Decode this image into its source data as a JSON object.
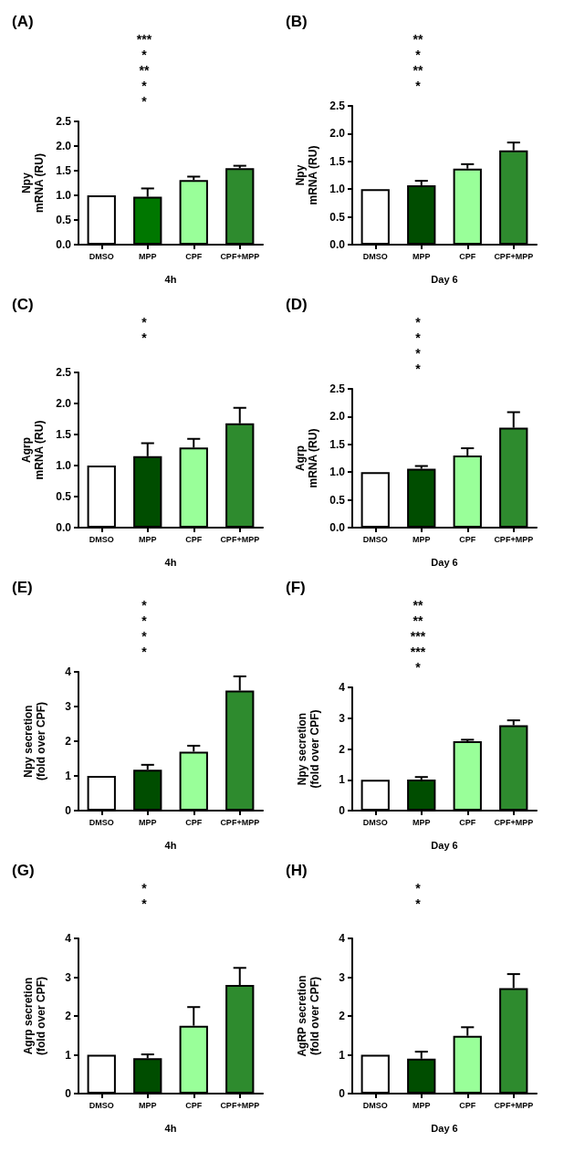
{
  "chart_data": [
    {
      "type": "bar",
      "title": "(A)",
      "ylabel": "Npy\nmRNA (RU)",
      "xlabel": "4h",
      "categories": [
        "DMSO",
        "MPP",
        "CPF",
        "CPF+MPP"
      ],
      "values": [
        1.0,
        0.97,
        1.31,
        1.55
      ],
      "errors": [
        null,
        [
          0.97,
          1.14
        ],
        [
          1.31,
          1.38
        ],
        [
          1.55,
          1.6
        ]
      ],
      "colors": [
        "#ffffff",
        "#007700",
        "#99ff99",
        "#2e8b2e"
      ],
      "ylim": [
        0,
        2.5
      ],
      "yticks": [
        {
          "value": 0,
          "label": "0.0"
        },
        {
          "value": 0.5,
          "label": "0.5"
        },
        {
          "value": 1,
          "label": "1.0"
        },
        {
          "value": 1.5,
          "label": "1.5"
        },
        {
          "value": 2,
          "label": "2.0"
        },
        {
          "value": 2.5,
          "label": "2.5"
        }
      ],
      "annotations": [
        "***",
        "*",
        "**",
        "*",
        "*"
      ]
    },
    {
      "type": "bar",
      "title": "(B)",
      "ylabel": "Npy\nmRNA (RU)",
      "xlabel": "Day 6",
      "categories": [
        "DMSO",
        "MPP",
        "CPF",
        "CPF+MPP"
      ],
      "values": [
        1.0,
        1.07,
        1.37,
        1.7
      ],
      "errors": [
        null,
        [
          1.07,
          1.15
        ],
        [
          1.37,
          1.45
        ],
        [
          1.7,
          1.84
        ]
      ],
      "colors": [
        "#ffffff",
        "#004d00",
        "#99ff99",
        "#2e8b2e"
      ],
      "ylim": [
        0,
        2.5
      ],
      "yticks": [
        {
          "value": 0,
          "label": "0.0"
        },
        {
          "value": 0.5,
          "label": "0.5"
        },
        {
          "value": 1,
          "label": "1.0"
        },
        {
          "value": 1.5,
          "label": "1.5"
        },
        {
          "value": 2,
          "label": "2.0"
        },
        {
          "value": 2.5,
          "label": "2.5"
        }
      ],
      "annotations": [
        "**",
        "*",
        "**",
        "*"
      ]
    },
    {
      "type": "bar",
      "title": "(C)",
      "ylabel": "Agrp\nmRNA (RU)",
      "xlabel": "4h",
      "categories": [
        "DMSO",
        "MPP",
        "CPF",
        "CPF+MPP"
      ],
      "values": [
        1.0,
        1.15,
        1.29,
        1.68
      ],
      "errors": [
        null,
        [
          1.15,
          1.36
        ],
        [
          1.29,
          1.43
        ],
        [
          1.68,
          1.93
        ]
      ],
      "colors": [
        "#ffffff",
        "#004d00",
        "#99ff99",
        "#2e8b2e"
      ],
      "ylim": [
        0,
        2.5
      ],
      "yticks": [
        {
          "value": 0,
          "label": "0.0"
        },
        {
          "value": 0.5,
          "label": "0.5"
        },
        {
          "value": 1,
          "label": "1.0"
        },
        {
          "value": 1.5,
          "label": "1.5"
        },
        {
          "value": 2,
          "label": "2.0"
        },
        {
          "value": 2.5,
          "label": "2.5"
        }
      ],
      "annotations": [
        "*",
        "*"
      ]
    },
    {
      "type": "bar",
      "title": "(D)",
      "ylabel": "Agrp\nmRNA (RU)",
      "xlabel": "Day 6",
      "categories": [
        "DMSO",
        "MPP",
        "CPF",
        "CPF+MPP"
      ],
      "values": [
        1.0,
        1.06,
        1.3,
        1.8
      ],
      "errors": [
        null,
        [
          1.06,
          1.11
        ],
        [
          1.3,
          1.43
        ],
        [
          1.8,
          2.08
        ]
      ],
      "colors": [
        "#ffffff",
        "#004d00",
        "#99ff99",
        "#2e8b2e"
      ],
      "ylim": [
        0,
        2.5
      ],
      "yticks": [
        {
          "value": 0,
          "label": "0.0"
        },
        {
          "value": 0.5,
          "label": "0.5"
        },
        {
          "value": 1,
          "label": "1.0"
        },
        {
          "value": 1.5,
          "label": "1.5"
        },
        {
          "value": 2,
          "label": "2.0"
        },
        {
          "value": 2.5,
          "label": "2.5"
        }
      ],
      "annotations": [
        "*",
        "*",
        "*",
        "*"
      ]
    },
    {
      "type": "bar",
      "title": "(E)",
      "ylabel": "Npy secretion\n(fold over CPF)",
      "xlabel": "4h",
      "categories": [
        "DMSO",
        "MPP",
        "CPF",
        "CPF+MPP"
      ],
      "values": [
        1.0,
        1.18,
        1.7,
        3.46
      ],
      "errors": [
        null,
        [
          1.18,
          1.32
        ],
        [
          1.7,
          1.87
        ],
        [
          3.46,
          3.87
        ]
      ],
      "colors": [
        "#ffffff",
        "#004d00",
        "#99ff99",
        "#2e8b2e"
      ],
      "ylim": [
        0,
        4
      ],
      "yticks": [
        0,
        1,
        2,
        3,
        4
      ],
      "annotations": [
        "*",
        "*",
        "*",
        "*"
      ]
    },
    {
      "type": "bar",
      "title": "(F)",
      "ylabel": "Npy secretion\n(fold over CPF)",
      "xlabel": "Day 6",
      "categories": [
        "DMSO",
        "MPP",
        "CPF",
        "CPF+MPP"
      ],
      "values": [
        1.0,
        1.01,
        2.25,
        2.77
      ],
      "errors": [
        null,
        [
          1.01,
          1.09
        ],
        [
          2.25,
          2.3
        ],
        [
          2.77,
          2.93
        ]
      ],
      "colors": [
        "#ffffff",
        "#004d00",
        "#99ff99",
        "#2e8b2e"
      ],
      "ylim": [
        0,
        4
      ],
      "yticks": [
        0,
        1,
        2,
        3,
        4
      ],
      "annotations": [
        "**",
        "**",
        "***",
        "***",
        "*"
      ]
    },
    {
      "type": "bar",
      "title": "(G)",
      "ylabel": "Agrp secretion\n(fold over CPF)",
      "xlabel": "4h",
      "categories": [
        "DMSO",
        "MPP",
        "CPF",
        "CPF+MPP"
      ],
      "values": [
        1.0,
        0.91,
        1.75,
        2.8
      ],
      "errors": [
        null,
        [
          0.91,
          1.01
        ],
        [
          1.75,
          2.23
        ],
        [
          2.8,
          3.24
        ]
      ],
      "colors": [
        "#ffffff",
        "#004d00",
        "#99ff99",
        "#2e8b2e"
      ],
      "ylim": [
        0,
        4
      ],
      "yticks": [
        0,
        1,
        2,
        3,
        4
      ],
      "annotations": [
        "*",
        "*"
      ]
    },
    {
      "type": "bar",
      "title": "(H)",
      "ylabel": "AgRP secretion\n(fold over CPF)",
      "xlabel": "Day 6",
      "categories": [
        "DMSO",
        "MPP",
        "CPF",
        "CPF+MPP"
      ],
      "values": [
        1.0,
        0.9,
        1.49,
        2.72
      ],
      "errors": [
        null,
        [
          0.9,
          1.08
        ],
        [
          1.49,
          1.71
        ],
        [
          2.72,
          3.08
        ]
      ],
      "colors": [
        "#ffffff",
        "#004d00",
        "#99ff99",
        "#2e8b2e"
      ],
      "ylim": [
        0,
        4
      ],
      "yticks": [
        0,
        1,
        2,
        3,
        4
      ],
      "annotations": [
        "*",
        "*"
      ]
    }
  ]
}
